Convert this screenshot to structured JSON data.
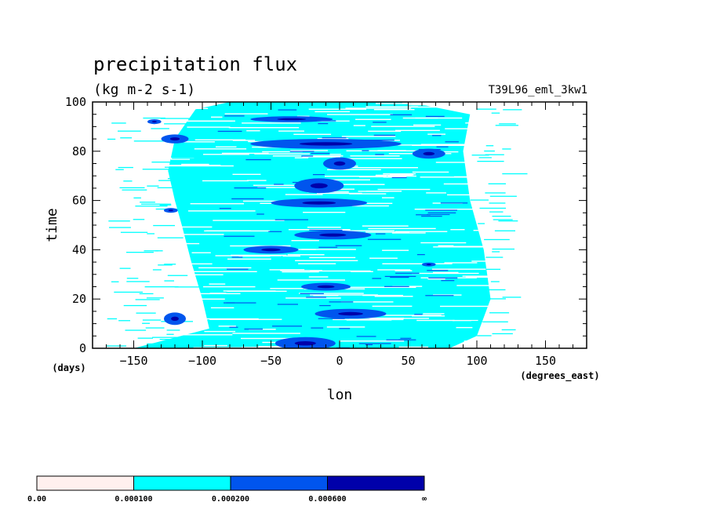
{
  "chart_data": {
    "type": "heatmap",
    "title": "precipitation flux",
    "units": "(kg m-2 s-1)",
    "dataset": "T39L96_eml_3kw1",
    "xlabel": "lon",
    "ylabel": "time",
    "x_units": "(degrees_east)",
    "y_units": "(days)",
    "xlim": [
      -180,
      180
    ],
    "ylim": [
      0,
      100
    ],
    "x_ticks": [
      -150,
      -100,
      -50,
      0,
      50,
      100,
      150
    ],
    "x_tick_labels": [
      "−150",
      "−100",
      "−50",
      "0",
      "50",
      "100",
      "150"
    ],
    "y_ticks": [
      0,
      20,
      40,
      60,
      80,
      100
    ],
    "y_tick_labels": [
      "0",
      "20",
      "40",
      "60",
      "80",
      "100"
    ],
    "levels": [
      0.0,
      0.0001,
      0.0002,
      0.0006
    ],
    "level_labels": [
      "0.00",
      "0.000100",
      "0.000200",
      "0.000600",
      "∞"
    ],
    "level_colors": [
      "#fff0ee",
      "#00ffff",
      "#0055ee",
      "#0000aa"
    ],
    "moderate_band": [
      {
        "lon": -150,
        "t": 0
      },
      {
        "lon": -95,
        "t": 8
      },
      {
        "lon": -100,
        "t": 20
      },
      {
        "lon": -108,
        "t": 35
      },
      {
        "lon": -115,
        "t": 50
      },
      {
        "lon": -120,
        "t": 60
      },
      {
        "lon": -125,
        "t": 72
      },
      {
        "lon": -120,
        "t": 85
      },
      {
        "lon": -105,
        "t": 97
      },
      {
        "lon": -80,
        "t": 100
      },
      {
        "lon": 50,
        "t": 100
      },
      {
        "lon": 95,
        "t": 95
      },
      {
        "lon": 90,
        "t": 80
      },
      {
        "lon": 95,
        "t": 60
      },
      {
        "lon": 105,
        "t": 40
      },
      {
        "lon": 110,
        "t": 20
      },
      {
        "lon": 100,
        "t": 5
      },
      {
        "lon": 80,
        "t": 0
      }
    ],
    "heavy_features": [
      {
        "lon": -25,
        "t": 2,
        "dlon": 22,
        "dt": 2.5
      },
      {
        "lon": 8,
        "t": 14,
        "dlon": 26,
        "dt": 2.0
      },
      {
        "lon": -10,
        "t": 25,
        "dlon": 18,
        "dt": 1.6
      },
      {
        "lon": -50,
        "t": 40,
        "dlon": 20,
        "dt": 1.6
      },
      {
        "lon": -5,
        "t": 46,
        "dlon": 28,
        "dt": 1.8
      },
      {
        "lon": -15,
        "t": 59,
        "dlon": 35,
        "dt": 1.8
      },
      {
        "lon": -15,
        "t": 66,
        "dlon": 18,
        "dt": 3.0
      },
      {
        "lon": 0,
        "t": 75,
        "dlon": 12,
        "dt": 2.5
      },
      {
        "lon": 65,
        "t": 79,
        "dlon": 12,
        "dt": 2.0
      },
      {
        "lon": -10,
        "t": 83,
        "dlon": 55,
        "dt": 2.0
      },
      {
        "lon": -35,
        "t": 93,
        "dlon": 30,
        "dt": 1.2
      },
      {
        "lon": -120,
        "t": 12,
        "dlon": 8,
        "dt": 2.5
      },
      {
        "lon": -120,
        "t": 85,
        "dlon": 10,
        "dt": 1.8
      },
      {
        "lon": -135,
        "t": 92,
        "dlon": 5,
        "dt": 1.0
      },
      {
        "lon": -123,
        "t": 56,
        "dlon": 5,
        "dt": 1.0
      },
      {
        "lon": 65,
        "t": 34,
        "dlon": 5,
        "dt": 0.8
      }
    ]
  }
}
